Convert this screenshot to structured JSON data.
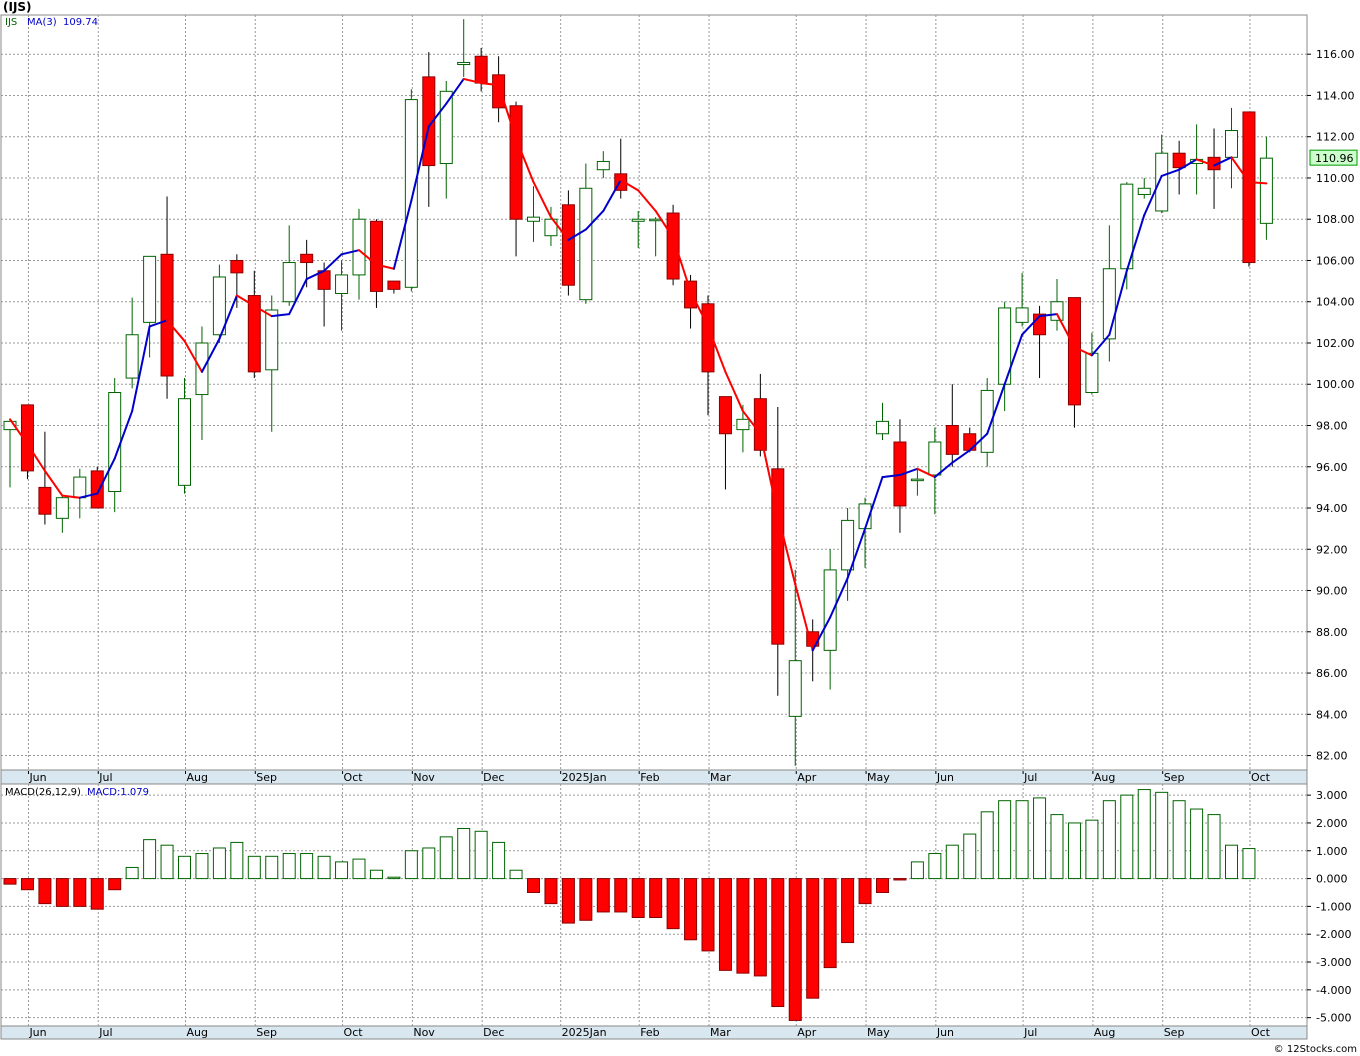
{
  "ticker_title": "(IJS)",
  "watermark": "© 12Stocks.com",
  "colors": {
    "up": "#006400",
    "down": "#ff0000",
    "ma_up": "#0000cc",
    "ma_down": "#ff0000",
    "grid": "#999999",
    "axis_strip": "#d9e7f0",
    "last_price_bg": "#ccffcc"
  },
  "chart_data": [
    {
      "type": "candlestick",
      "legend": {
        "symbol": "IJS",
        "ma_label": "MA(3)",
        "ma_value": "109.74"
      },
      "last_price_label": "110.96",
      "y_ticks": [
        "82.00",
        "84.00",
        "86.00",
        "88.00",
        "90.00",
        "92.00",
        "94.00",
        "96.00",
        "98.00",
        "100.00",
        "102.00",
        "104.00",
        "106.00",
        "108.00",
        "110.00",
        "112.00",
        "114.00",
        "116.00"
      ],
      "ylim": [
        81.3,
        117.9
      ],
      "grid": true,
      "months": [
        {
          "label": "Jun",
          "at": 1.0
        },
        {
          "label": "Jul",
          "at": 5.0
        },
        {
          "label": "Aug",
          "at": 10.0
        },
        {
          "label": "Sep",
          "at": 14.0
        },
        {
          "label": "Oct",
          "at": 19.0
        },
        {
          "label": "Nov",
          "at": 23.0
        },
        {
          "label": "Dec",
          "at": 27.0
        },
        {
          "label": "2025Jan",
          "at": 31.5
        },
        {
          "label": "Feb",
          "at": 36.0
        },
        {
          "label": "Mar",
          "at": 40.0
        },
        {
          "label": "Apr",
          "at": 45.0
        },
        {
          "label": "May",
          "at": 49.0
        },
        {
          "label": "Jun",
          "at": 53.0
        },
        {
          "label": "Jul",
          "at": 58.0
        },
        {
          "label": "Aug",
          "at": 62.0
        },
        {
          "label": "Sep",
          "at": 66.0
        },
        {
          "label": "Oct",
          "at": 71.0
        }
      ],
      "candles": [
        {
          "o": 97.8,
          "h": 98.3,
          "l": 95.0,
          "c": 98.2
        },
        {
          "o": 99.0,
          "h": 99.0,
          "l": 95.4,
          "c": 95.8
        },
        {
          "o": 95.0,
          "h": 97.7,
          "l": 93.2,
          "c": 93.7
        },
        {
          "o": 93.5,
          "h": 94.6,
          "l": 92.8,
          "c": 94.5
        },
        {
          "o": 94.5,
          "h": 95.9,
          "l": 93.5,
          "c": 95.5
        },
        {
          "o": 95.8,
          "h": 96.0,
          "l": 94.0,
          "c": 94.0
        },
        {
          "o": 94.8,
          "h": 100.3,
          "l": 93.8,
          "c": 99.6
        },
        {
          "o": 100.3,
          "h": 104.2,
          "l": 99.8,
          "c": 102.4
        },
        {
          "o": 103.0,
          "h": 106.2,
          "l": 101.3,
          "c": 106.2
        },
        {
          "o": 106.3,
          "h": 109.1,
          "l": 99.3,
          "c": 100.4
        },
        {
          "o": 95.1,
          "h": 100.3,
          "l": 94.7,
          "c": 99.3
        },
        {
          "o": 99.5,
          "h": 102.8,
          "l": 97.3,
          "c": 102.0
        },
        {
          "o": 102.4,
          "h": 105.8,
          "l": 102.0,
          "c": 105.2
        },
        {
          "o": 106.0,
          "h": 106.3,
          "l": 103.7,
          "c": 105.4
        },
        {
          "o": 104.3,
          "h": 105.5,
          "l": 100.3,
          "c": 100.6
        },
        {
          "o": 100.7,
          "h": 104.3,
          "l": 97.7,
          "c": 103.6
        },
        {
          "o": 104.0,
          "h": 107.7,
          "l": 103.8,
          "c": 105.9
        },
        {
          "o": 106.3,
          "h": 107.0,
          "l": 104.7,
          "c": 105.9
        },
        {
          "o": 105.5,
          "h": 105.9,
          "l": 102.8,
          "c": 104.6
        },
        {
          "o": 104.4,
          "h": 106.0,
          "l": 102.6,
          "c": 105.3
        },
        {
          "o": 105.3,
          "h": 108.5,
          "l": 104.1,
          "c": 108.0
        },
        {
          "o": 107.9,
          "h": 108.0,
          "l": 103.7,
          "c": 104.5
        },
        {
          "o": 105.0,
          "h": 105.0,
          "l": 104.4,
          "c": 104.6
        },
        {
          "o": 104.7,
          "h": 114.3,
          "l": 104.5,
          "c": 113.8
        },
        {
          "o": 114.9,
          "h": 116.1,
          "l": 108.6,
          "c": 110.6
        },
        {
          "o": 110.7,
          "h": 114.7,
          "l": 109.0,
          "c": 114.2
        },
        {
          "o": 115.5,
          "h": 117.7,
          "l": 114.9,
          "c": 115.6
        },
        {
          "o": 115.9,
          "h": 116.3,
          "l": 114.2,
          "c": 114.6
        },
        {
          "o": 115.0,
          "h": 115.9,
          "l": 112.7,
          "c": 113.4
        },
        {
          "o": 113.5,
          "h": 113.7,
          "l": 106.2,
          "c": 108.0
        },
        {
          "o": 107.9,
          "h": 109.6,
          "l": 106.9,
          "c": 108.1
        },
        {
          "o": 107.2,
          "h": 108.6,
          "l": 106.7,
          "c": 108.0
        },
        {
          "o": 108.7,
          "h": 109.4,
          "l": 104.3,
          "c": 104.8
        },
        {
          "o": 104.1,
          "h": 110.7,
          "l": 103.9,
          "c": 109.5
        },
        {
          "o": 110.4,
          "h": 111.3,
          "l": 110.0,
          "c": 110.8
        },
        {
          "o": 110.2,
          "h": 111.9,
          "l": 109.0,
          "c": 109.4
        },
        {
          "o": 107.9,
          "h": 108.4,
          "l": 106.6,
          "c": 108.0
        },
        {
          "o": 108.0,
          "h": 108.1,
          "l": 106.2,
          "c": 108.0
        },
        {
          "o": 108.3,
          "h": 108.7,
          "l": 104.8,
          "c": 105.1
        },
        {
          "o": 105.0,
          "h": 105.3,
          "l": 102.7,
          "c": 103.7
        },
        {
          "o": 103.9,
          "h": 104.3,
          "l": 98.5,
          "c": 100.6
        },
        {
          "o": 99.4,
          "h": 99.4,
          "l": 94.9,
          "c": 97.6
        },
        {
          "o": 97.8,
          "h": 99.0,
          "l": 96.7,
          "c": 98.3
        },
        {
          "o": 99.3,
          "h": 100.5,
          "l": 96.5,
          "c": 96.8
        },
        {
          "o": 95.9,
          "h": 98.9,
          "l": 84.9,
          "c": 87.4
        },
        {
          "o": 83.9,
          "h": 91.0,
          "l": 81.5,
          "c": 86.6
        },
        {
          "o": 88.0,
          "h": 88.6,
          "l": 85.6,
          "c": 87.3
        },
        {
          "o": 87.1,
          "h": 92.0,
          "l": 85.2,
          "c": 91.0
        },
        {
          "o": 91.0,
          "h": 94.0,
          "l": 89.5,
          "c": 93.4
        },
        {
          "o": 93.0,
          "h": 94.5,
          "l": 91.1,
          "c": 94.2
        },
        {
          "o": 97.6,
          "h": 99.1,
          "l": 97.3,
          "c": 98.2
        },
        {
          "o": 97.2,
          "h": 98.3,
          "l": 92.8,
          "c": 94.1
        },
        {
          "o": 95.4,
          "h": 95.9,
          "l": 94.6,
          "c": 95.4
        },
        {
          "o": 95.6,
          "h": 97.9,
          "l": 93.7,
          "c": 97.2
        },
        {
          "o": 98.0,
          "h": 100.0,
          "l": 96.0,
          "c": 96.6
        },
        {
          "o": 97.6,
          "h": 97.9,
          "l": 96.7,
          "c": 96.8
        },
        {
          "o": 96.7,
          "h": 100.3,
          "l": 96.0,
          "c": 99.7
        },
        {
          "o": 100.0,
          "h": 104.0,
          "l": 98.7,
          "c": 103.7
        },
        {
          "o": 103.0,
          "h": 105.4,
          "l": 102.8,
          "c": 103.7
        },
        {
          "o": 103.4,
          "h": 103.8,
          "l": 100.3,
          "c": 102.4
        },
        {
          "o": 103.1,
          "h": 105.1,
          "l": 102.6,
          "c": 104.0
        },
        {
          "o": 104.2,
          "h": 104.2,
          "l": 97.9,
          "c": 99.0
        },
        {
          "o": 99.6,
          "h": 102.5,
          "l": 99.5,
          "c": 101.5
        },
        {
          "o": 102.2,
          "h": 107.7,
          "l": 101.1,
          "c": 105.6
        },
        {
          "o": 105.6,
          "h": 109.8,
          "l": 104.6,
          "c": 109.7
        },
        {
          "o": 109.2,
          "h": 110.0,
          "l": 109.0,
          "c": 109.5
        },
        {
          "o": 108.4,
          "h": 112.1,
          "l": 108.3,
          "c": 111.2
        },
        {
          "o": 111.2,
          "h": 111.8,
          "l": 109.2,
          "c": 110.5
        },
        {
          "o": 110.7,
          "h": 112.6,
          "l": 109.2,
          "c": 110.9
        },
        {
          "o": 111.0,
          "h": 112.4,
          "l": 108.5,
          "c": 110.4
        },
        {
          "o": 111.0,
          "h": 113.4,
          "l": 109.5,
          "c": 112.3
        },
        {
          "o": 113.2,
          "h": 113.2,
          "l": 105.7,
          "c": 105.9
        },
        {
          "o": 107.8,
          "h": 112.0,
          "l": 107.0,
          "c": 110.96
        }
      ],
      "ma3": [
        98.3,
        97.1,
        95.8,
        94.6,
        94.5,
        94.7,
        96.4,
        98.7,
        102.8,
        103.1,
        102.1,
        100.6,
        102.2,
        104.3,
        103.8,
        103.3,
        103.4,
        105.1,
        105.5,
        106.3,
        106.5,
        105.8,
        105.6,
        108.9,
        112.5,
        113.6,
        114.8,
        114.6,
        114.5,
        111.9,
        109.8,
        108.1,
        107.0,
        107.5,
        108.4,
        109.9,
        109.4,
        108.4,
        107.1,
        104.5,
        102.8,
        100.6,
        98.7,
        97.6,
        93.7,
        90.3,
        87.1,
        88.7,
        90.6,
        93.0,
        95.5,
        95.6,
        95.9,
        95.5,
        96.2,
        96.8,
        97.6,
        100.0,
        102.4,
        103.3,
        103.4,
        101.8,
        101.4,
        102.4,
        105.5,
        108.2,
        110.1,
        110.4,
        110.9,
        110.6,
        111.0,
        109.8,
        109.74
      ]
    },
    {
      "type": "bar",
      "legend": {
        "name": "MACD(26,12,9)",
        "value_label": "MACD:1.079"
      },
      "y_ticks": [
        "-5.000",
        "-4.000",
        "-3.000",
        "-2.000",
        "-1.000",
        "0.000",
        "1.000",
        "2.000",
        "3.000"
      ],
      "ylim": [
        -5.3,
        3.4
      ],
      "grid": true,
      "values": [
        -0.2,
        -0.4,
        -0.9,
        -1.0,
        -1.0,
        -1.1,
        -0.4,
        0.4,
        1.4,
        1.2,
        0.8,
        0.9,
        1.1,
        1.3,
        0.8,
        0.8,
        0.9,
        0.9,
        0.8,
        0.6,
        0.7,
        0.3,
        0.05,
        1.0,
        1.1,
        1.5,
        1.8,
        1.7,
        1.3,
        0.3,
        -0.5,
        -0.9,
        -1.6,
        -1.5,
        -1.2,
        -1.2,
        -1.4,
        -1.4,
        -1.8,
        -2.2,
        -2.6,
        -3.3,
        -3.4,
        -3.5,
        -4.6,
        -5.1,
        -4.3,
        -3.2,
        -2.3,
        -0.9,
        -0.5,
        -0.05,
        0.6,
        0.9,
        1.2,
        1.6,
        2.4,
        2.8,
        2.8,
        2.9,
        2.3,
        2.0,
        2.1,
        2.8,
        3.0,
        3.2,
        3.1,
        2.8,
        2.5,
        2.3,
        1.2,
        1.079
      ]
    }
  ]
}
